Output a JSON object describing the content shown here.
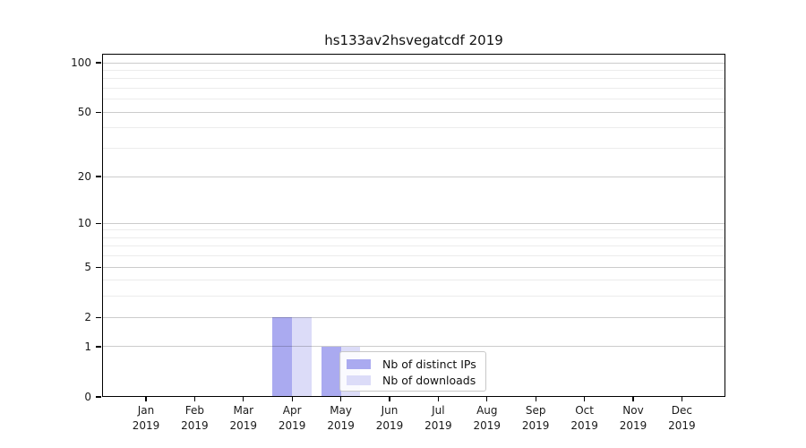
{
  "chart_data": {
    "type": "bar",
    "title": "hs133av2hsvegatcdf 2019",
    "x_axis": {
      "categories": [
        "Jan",
        "Feb",
        "Mar",
        "Apr",
        "May",
        "Jun",
        "Jul",
        "Aug",
        "Sep",
        "Oct",
        "Nov",
        "Dec"
      ],
      "year_label": "2019"
    },
    "y_axis": {
      "scale": "log1p",
      "lim": [
        0,
        113
      ],
      "major_ticks": [
        0,
        1,
        2,
        5,
        10,
        20,
        50,
        100
      ],
      "minor_ticks": [
        3,
        4,
        6,
        7,
        8,
        9,
        30,
        40,
        60,
        70,
        80,
        90
      ]
    },
    "series": [
      {
        "name": "Nb of distinct IPs",
        "color": "#aaaaf0",
        "values": [
          0,
          0,
          0,
          2,
          1,
          0,
          0,
          0,
          0,
          0,
          0,
          0
        ]
      },
      {
        "name": "Nb of downloads",
        "color": "#dcdcf8",
        "values": [
          0,
          0,
          0,
          2,
          1,
          0,
          0,
          0,
          0,
          0,
          0,
          0
        ]
      }
    ],
    "grid": {
      "show": true,
      "major_color": "#cccccc",
      "minor_color": "#ececec"
    },
    "legend": {
      "position": "inside-bottom-center"
    }
  },
  "colors": {
    "background": "#ffffff",
    "axis": "#000000",
    "text": "#1a1a1a"
  }
}
